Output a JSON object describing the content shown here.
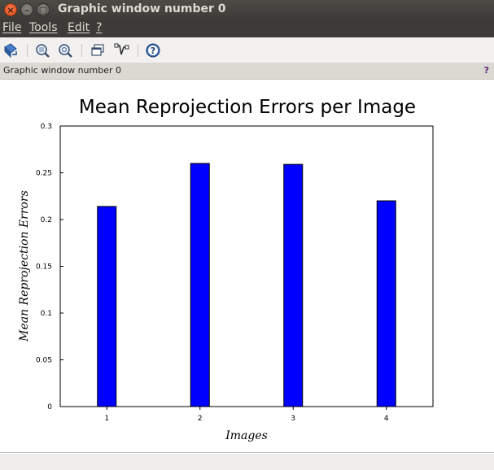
{
  "window": {
    "title": "Graphic window number 0",
    "close_glyph": "×",
    "minimize_glyph": "–",
    "maximize_glyph": "□"
  },
  "menu": {
    "items": [
      {
        "label": "File"
      },
      {
        "label": "Tools"
      },
      {
        "label": "Edit"
      },
      {
        "label": "?"
      }
    ]
  },
  "toolbar": {
    "buttons": [
      {
        "icon": "rotate-icon"
      },
      {
        "icon": "zoom-icon"
      },
      {
        "icon": "unzoom-icon"
      },
      {
        "icon": "figure-windows-icon"
      },
      {
        "icon": "datatip-icon"
      },
      {
        "icon": "help-icon"
      }
    ]
  },
  "infobar": {
    "label": "Graphic window number 0",
    "help": "?"
  },
  "status": {
    "text": ""
  },
  "colors": {
    "bar_fill": "#0000ff",
    "bar_stroke": "#000000",
    "background": "#ffffff",
    "menubar": "#3c3b37",
    "close_button": "#df4a16"
  },
  "chart_data": {
    "type": "bar",
    "title": "Mean Reprojection Errors per Image",
    "xlabel": "Images",
    "ylabel": "Mean Reprojection Errors",
    "categories": [
      "1",
      "2",
      "3",
      "4"
    ],
    "values": [
      0.214,
      0.26,
      0.259,
      0.22
    ],
    "ylim": [
      0,
      0.3
    ],
    "yticks": [
      "0",
      "0.05",
      "0.1",
      "0.15",
      "0.2",
      "0.25",
      "0.3"
    ],
    "grid": false,
    "legend": "none"
  }
}
